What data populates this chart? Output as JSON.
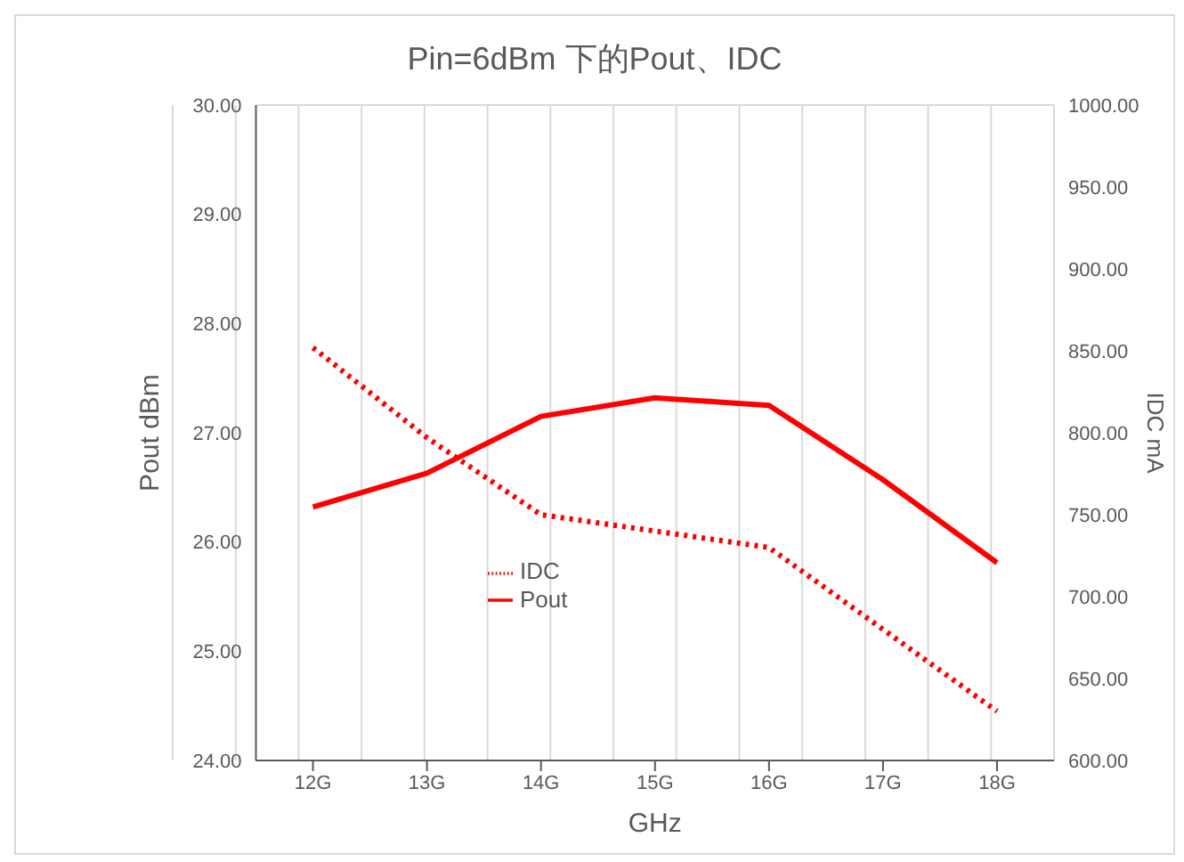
{
  "chart_data": {
    "type": "line",
    "title": "Pin=6dBm 下的Pout、IDC",
    "xlabel": "GHz",
    "ylabel": "Pout dBm",
    "y2label": "IDC mA",
    "categories": [
      "12G",
      "13G",
      "14G",
      "15G",
      "16G",
      "17G",
      "18G"
    ],
    "series": [
      {
        "name": "Pout",
        "color": "#ff0000",
        "values": [
          26.32,
          26.63,
          27.15,
          27.32,
          27.25,
          26.57,
          25.81
        ],
        "line_style": "solid"
      },
      {
        "name": "IDC",
        "color": "#ff0000",
        "axis": "y2",
        "values": [
          852,
          797,
          750,
          740,
          730,
          680,
          630
        ],
        "line_style": "dotted"
      }
    ],
    "ylim": [
      24,
      30
    ],
    "yticks": [
      {
        "value": 24,
        "label": "24.00"
      },
      {
        "value": 25,
        "label": "25.00"
      },
      {
        "value": 26,
        "label": "26.00"
      },
      {
        "value": 27,
        "label": "27.00"
      },
      {
        "value": 28,
        "label": "28.00"
      },
      {
        "value": 29,
        "label": "29.00"
      },
      {
        "value": 30,
        "label": "30.00"
      }
    ],
    "y2lim": [
      600,
      1000
    ],
    "y2ticks": [
      {
        "value": 600,
        "label": "600.00"
      },
      {
        "value": 650,
        "label": "650.00"
      },
      {
        "value": 700,
        "label": "700.00"
      },
      {
        "value": 750,
        "label": "750.00"
      },
      {
        "value": 800,
        "label": "800.00"
      },
      {
        "value": 850,
        "label": "850.00"
      },
      {
        "value": 900,
        "label": "900.00"
      },
      {
        "value": 950,
        "label": "950.00"
      },
      {
        "value": 1000,
        "label": "1000.00"
      }
    ],
    "grid": true,
    "legend": "center",
    "marker": "none"
  }
}
